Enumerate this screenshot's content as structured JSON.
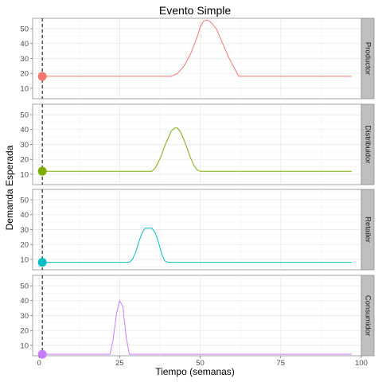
{
  "chart_data": {
    "type": "line",
    "title": "Evento Simple",
    "xlabel": "Tiempo (semanas)",
    "ylabel": "Demanda Esperada",
    "xlim": [
      -2,
      100
    ],
    "ylim": [
      3,
      57
    ],
    "x_ticks": [
      0,
      25,
      50,
      75,
      100
    ],
    "y_ticks": [
      10,
      20,
      30,
      40,
      50
    ],
    "grid": true,
    "vline_x": 1,
    "facets": [
      {
        "name": "Productor",
        "color": "#f8766d",
        "marker": {
          "x": 1,
          "y": 18
        },
        "x": [
          1,
          41,
          43,
          45,
          47,
          49,
          50,
          51,
          52,
          53,
          55,
          57,
          59,
          61,
          62,
          97
        ],
        "y": [
          18,
          18,
          20,
          25,
          33,
          44,
          51,
          55,
          56,
          55,
          50,
          40,
          30,
          22,
          18,
          18
        ]
      },
      {
        "name": "Distribuidor",
        "color": "#7cae00",
        "marker": {
          "x": 1,
          "y": 12
        },
        "x": [
          1,
          35,
          36,
          37,
          38,
          39,
          40,
          41,
          42,
          43,
          44,
          45,
          46,
          47,
          48,
          49,
          50,
          97
        ],
        "y": [
          12,
          12,
          14,
          18,
          23,
          29,
          34,
          39,
          41,
          41,
          38,
          33,
          27,
          21,
          16,
          13,
          12,
          12
        ]
      },
      {
        "name": "Retailer",
        "color": "#00bfc4",
        "marker": {
          "x": 1,
          "y": 8
        },
        "x": [
          1,
          28,
          29,
          30,
          31,
          32,
          33,
          34,
          35,
          36,
          37,
          38,
          39,
          40,
          97
        ],
        "y": [
          8,
          8,
          10,
          15,
          22,
          28,
          31,
          31,
          31,
          28,
          22,
          14,
          9,
          8,
          8
        ]
      },
      {
        "name": "Consumidor",
        "color": "#c77cff",
        "marker": {
          "x": 1,
          "y": 4
        },
        "x": [
          1,
          22,
          23,
          24,
          25,
          26,
          27,
          28,
          97
        ],
        "y": [
          4,
          4,
          14,
          31,
          40,
          36,
          16,
          4,
          4
        ]
      }
    ]
  }
}
